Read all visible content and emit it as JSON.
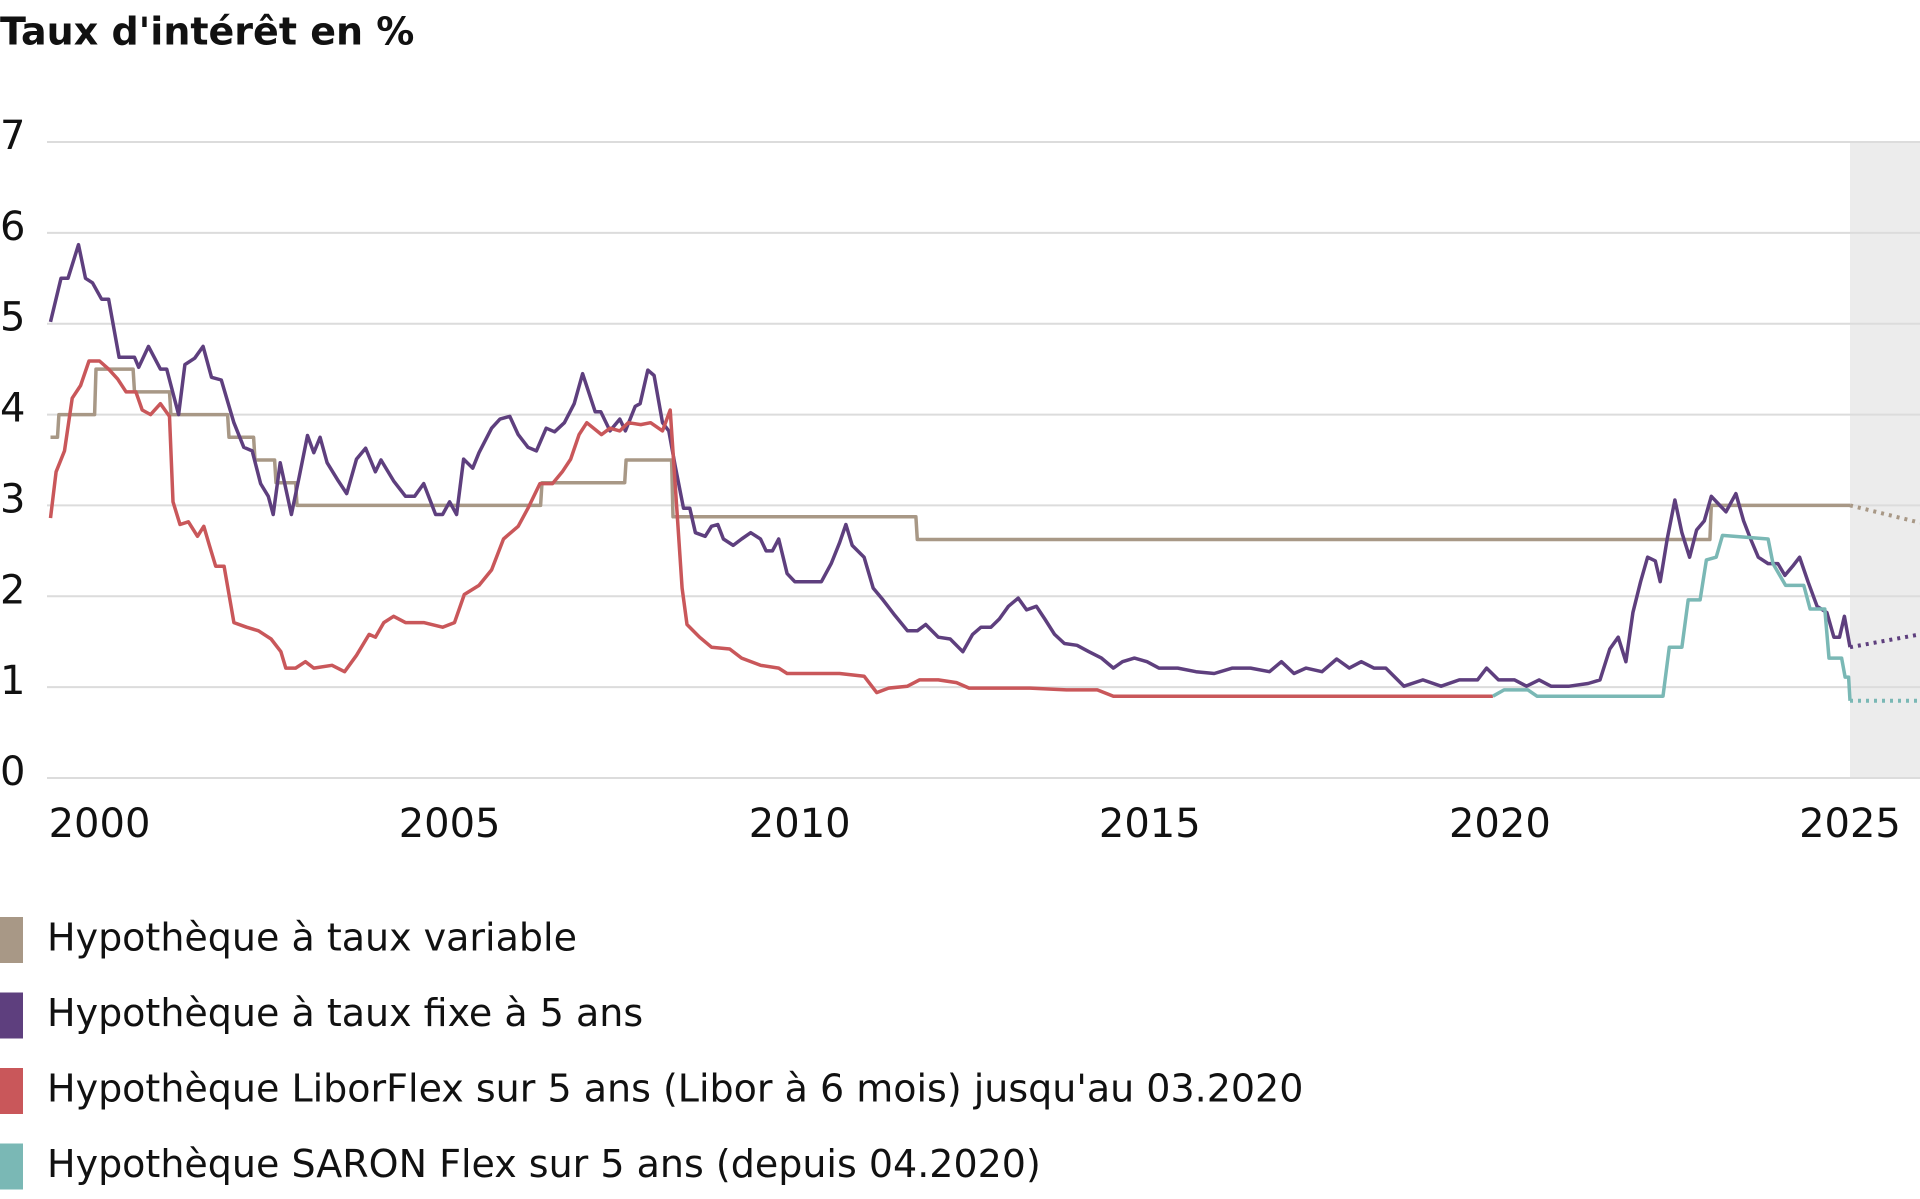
{
  "chart_data": {
    "type": "line",
    "title": "Taux d'intérêt en %",
    "xlim": [
      1999.25,
      2026
    ],
    "ylim": [
      0,
      7
    ],
    "xticks": [
      2000,
      2005,
      2010,
      2015,
      2020,
      2025
    ],
    "yticks": [
      0,
      1,
      2,
      3,
      4,
      5,
      6,
      7
    ],
    "grid": true,
    "shaded_xlim": [
      2025,
      2026
    ],
    "shaded_color": "#ececec",
    "series": [
      {
        "name": "Hypothèque à taux variable",
        "color": "#a89886",
        "x": [
          1999.3,
          1999.4,
          1999.42,
          1999.93,
          1999.95,
          2000.48,
          2000.5,
          2001.0,
          2001.02,
          2001.83,
          2001.85,
          2002.2,
          2002.22,
          2002.5,
          2002.52,
          2002.8,
          2002.82,
          2006.3,
          2006.32,
          2007.5,
          2007.52,
          2008.17,
          2008.19,
          2011.66,
          2011.68,
          2023.0,
          2023.02,
          2025.0
        ],
        "values": [
          3.75,
          3.75,
          4.0,
          4.0,
          4.5,
          4.5,
          4.25,
          4.25,
          4.0,
          4.0,
          3.75,
          3.75,
          3.5,
          3.5,
          3.25,
          3.25,
          3.0,
          3.0,
          3.25,
          3.25,
          3.5,
          3.5,
          2.875,
          2.875,
          2.625,
          2.625,
          3.0,
          3.0
        ],
        "forecast": {
          "x": [
            2025.0,
            2026.0
          ],
          "values": [
            3.0,
            2.81
          ]
        }
      },
      {
        "name": "Hypothèque à taux fixe à 5 ans",
        "color": "#5e3f7e",
        "x": [
          1999.3,
          1999.45,
          1999.55,
          1999.7,
          1999.8,
          1999.9,
          2000.03,
          2000.13,
          2000.28,
          2000.5,
          2000.56,
          2000.7,
          2000.87,
          2000.96,
          2001.13,
          2001.22,
          2001.36,
          2001.48,
          2001.6,
          2001.74,
          2001.92,
          2002.06,
          2002.18,
          2002.3,
          2002.41,
          2002.48,
          2002.58,
          2002.74,
          2002.85,
          2002.97,
          2003.06,
          2003.15,
          2003.25,
          2003.41,
          2003.53,
          2003.67,
          2003.8,
          2003.94,
          2004.02,
          2004.2,
          2004.37,
          2004.5,
          2004.63,
          2004.8,
          2004.9,
          2005.0,
          2005.1,
          2005.2,
          2005.33,
          2005.42,
          2005.6,
          2005.72,
          2005.86,
          2005.98,
          2006.12,
          2006.24,
          2006.38,
          2006.5,
          2006.64,
          2006.78,
          2006.9,
          2007.08,
          2007.16,
          2007.29,
          2007.43,
          2007.51,
          2007.65,
          2007.72,
          2007.83,
          2007.92,
          2008.04,
          2008.13,
          2008.22,
          2008.34,
          2008.43,
          2008.51,
          2008.65,
          2008.74,
          2008.83,
          2008.91,
          2009.05,
          2009.17,
          2009.3,
          2009.44,
          2009.52,
          2009.61,
          2009.7,
          2009.82,
          2009.93,
          2010.14,
          2010.31,
          2010.45,
          2010.57,
          2010.66,
          2010.75,
          2010.92,
          2011.05,
          2011.19,
          2011.36,
          2011.54,
          2011.68,
          2011.8,
          2011.98,
          2012.15,
          2012.33,
          2012.47,
          2012.59,
          2012.73,
          2012.85,
          2012.98,
          2013.12,
          2013.24,
          2013.38,
          2013.5,
          2013.64,
          2013.78,
          2013.96,
          2014.13,
          2014.31,
          2014.48,
          2014.61,
          2014.78,
          2014.96,
          2015.13,
          2015.4,
          2015.66,
          2015.92,
          2016.18,
          2016.44,
          2016.71,
          2016.88,
          2017.06,
          2017.23,
          2017.46,
          2017.67,
          2017.85,
          2018.02,
          2018.2,
          2018.37,
          2018.63,
          2018.9,
          2019.16,
          2019.42,
          2019.68,
          2019.81,
          2019.98,
          2020.21,
          2020.38,
          2020.56,
          2020.73,
          2020.99,
          2021.26,
          2021.43,
          2021.57,
          2021.69,
          2021.8,
          2021.9,
          2022.01,
          2022.11,
          2022.22,
          2022.29,
          2022.39,
          2022.5,
          2022.6,
          2022.71,
          2022.81,
          2022.92,
          2023.02,
          2023.13,
          2023.23,
          2023.37,
          2023.48,
          2023.58,
          2023.69,
          2023.83,
          2023.97,
          2024.07,
          2024.18,
          2024.28,
          2024.4,
          2024.53,
          2024.67,
          2024.77,
          2024.85,
          2024.92,
          2025.0
        ],
        "values": [
          5.02,
          5.5,
          5.5,
          5.87,
          5.5,
          5.45,
          5.27,
          5.27,
          4.63,
          4.63,
          4.52,
          4.75,
          4.5,
          4.5,
          4.0,
          4.55,
          4.62,
          4.75,
          4.41,
          4.38,
          3.91,
          3.64,
          3.6,
          3.24,
          3.1,
          2.9,
          3.47,
          2.9,
          3.31,
          3.77,
          3.58,
          3.75,
          3.47,
          3.27,
          3.13,
          3.51,
          3.63,
          3.37,
          3.5,
          3.27,
          3.1,
          3.1,
          3.24,
          2.9,
          2.9,
          3.04,
          2.9,
          3.51,
          3.41,
          3.58,
          3.85,
          3.95,
          3.98,
          3.78,
          3.64,
          3.6,
          3.85,
          3.81,
          3.91,
          4.12,
          4.45,
          4.03,
          4.03,
          3.82,
          3.95,
          3.82,
          4.09,
          4.12,
          4.49,
          4.43,
          3.91,
          3.82,
          3.44,
          2.97,
          2.97,
          2.7,
          2.66,
          2.77,
          2.79,
          2.63,
          2.56,
          2.63,
          2.7,
          2.63,
          2.5,
          2.5,
          2.63,
          2.25,
          2.16,
          2.16,
          2.16,
          2.36,
          2.59,
          2.79,
          2.56,
          2.43,
          2.09,
          1.96,
          1.79,
          1.62,
          1.62,
          1.69,
          1.55,
          1.53,
          1.39,
          1.58,
          1.66,
          1.66,
          1.75,
          1.89,
          1.98,
          1.85,
          1.89,
          1.75,
          1.58,
          1.48,
          1.46,
          1.39,
          1.32,
          1.21,
          1.28,
          1.32,
          1.28,
          1.21,
          1.21,
          1.17,
          1.15,
          1.21,
          1.21,
          1.17,
          1.28,
          1.15,
          1.21,
          1.17,
          1.31,
          1.21,
          1.28,
          1.21,
          1.21,
          1.01,
          1.08,
          1.01,
          1.08,
          1.08,
          1.21,
          1.08,
          1.08,
          1.01,
          1.08,
          1.01,
          1.01,
          1.04,
          1.08,
          1.42,
          1.55,
          1.28,
          1.82,
          2.16,
          2.43,
          2.39,
          2.16,
          2.63,
          3.06,
          2.7,
          2.43,
          2.73,
          2.83,
          3.1,
          3.01,
          2.93,
          3.13,
          2.83,
          2.63,
          2.43,
          2.36,
          2.36,
          2.23,
          2.33,
          2.43,
          2.16,
          1.89,
          1.82,
          1.55,
          1.55,
          1.78,
          1.44
        ],
        "forecast": {
          "x": [
            2025.0,
            2026.0
          ],
          "values": [
            1.44,
            1.58
          ]
        }
      },
      {
        "name": "Hypothèque LiborFlex sur 5 ans (Libor à 6 mois) jusqu'au 03.2020",
        "color": "#c9575a",
        "x": [
          1999.3,
          1999.38,
          1999.5,
          1999.61,
          1999.73,
          1999.85,
          2000.0,
          2000.13,
          2000.26,
          2000.38,
          2000.52,
          2000.61,
          2000.73,
          2000.87,
          2001.0,
          2001.05,
          2001.15,
          2001.27,
          2001.4,
          2001.49,
          2001.57,
          2001.66,
          2001.78,
          2001.92,
          2002.1,
          2002.27,
          2002.45,
          2002.59,
          2002.66,
          2002.8,
          2002.94,
          2003.06,
          2003.32,
          2003.5,
          2003.67,
          2003.85,
          2003.94,
          2004.06,
          2004.2,
          2004.37,
          2004.63,
          2004.9,
          2005.07,
          2005.21,
          2005.42,
          2005.6,
          2005.77,
          2005.98,
          2006.12,
          2006.29,
          2006.47,
          2006.61,
          2006.73,
          2006.85,
          2006.96,
          2007.17,
          2007.29,
          2007.43,
          2007.55,
          2007.73,
          2007.87,
          2008.04,
          2008.15,
          2008.25,
          2008.32,
          2008.39,
          2008.57,
          2008.74,
          2009.0,
          2009.17,
          2009.44,
          2009.7,
          2009.82,
          2009.96,
          2010.22,
          2010.57,
          2010.92,
          2011.1,
          2011.27,
          2011.54,
          2011.71,
          2011.98,
          2012.24,
          2012.42,
          2012.76,
          2013.29,
          2013.81,
          2014.25,
          2014.48,
          2019.9
        ],
        "values": [
          2.86,
          3.37,
          3.6,
          4.18,
          4.32,
          4.59,
          4.59,
          4.5,
          4.39,
          4.25,
          4.25,
          4.05,
          4.0,
          4.12,
          3.98,
          3.04,
          2.79,
          2.82,
          2.66,
          2.77,
          2.56,
          2.33,
          2.33,
          1.71,
          1.66,
          1.62,
          1.53,
          1.39,
          1.21,
          1.21,
          1.28,
          1.21,
          1.24,
          1.17,
          1.35,
          1.58,
          1.55,
          1.71,
          1.78,
          1.71,
          1.71,
          1.66,
          1.71,
          2.02,
          2.12,
          2.29,
          2.63,
          2.77,
          2.97,
          3.24,
          3.24,
          3.37,
          3.51,
          3.78,
          3.91,
          3.78,
          3.85,
          3.82,
          3.91,
          3.89,
          3.91,
          3.82,
          4.05,
          2.9,
          2.09,
          1.69,
          1.55,
          1.44,
          1.42,
          1.32,
          1.24,
          1.21,
          1.15,
          1.15,
          1.15,
          1.15,
          1.12,
          0.94,
          0.99,
          1.01,
          1.08,
          1.08,
          1.05,
          0.99,
          0.99,
          0.99,
          0.97,
          0.97,
          0.9,
          0.9
        ]
      },
      {
        "name": "Hypothèque SARON Flex sur 5 ans (depuis 04.2020)",
        "color": "#7ab8b5",
        "x": [
          2019.9,
          2020.06,
          2020.4,
          2020.53,
          2022.33,
          2022.42,
          2022.6,
          2022.69,
          2022.86,
          2022.95,
          2023.09,
          2023.18,
          2023.83,
          2023.9,
          2024.08,
          2024.34,
          2024.43,
          2024.64,
          2024.7,
          2024.88,
          2024.93,
          2024.98,
          2025.0
        ],
        "values": [
          0.9,
          0.97,
          0.97,
          0.9,
          0.9,
          1.44,
          1.44,
          1.96,
          1.96,
          2.4,
          2.43,
          2.67,
          2.63,
          2.36,
          2.12,
          2.12,
          1.86,
          1.86,
          1.32,
          1.32,
          1.11,
          1.11,
          0.85
        ],
        "forecast": {
          "x": [
            2025.0,
            2026.0
          ],
          "values": [
            0.85,
            0.85
          ]
        }
      }
    ]
  }
}
